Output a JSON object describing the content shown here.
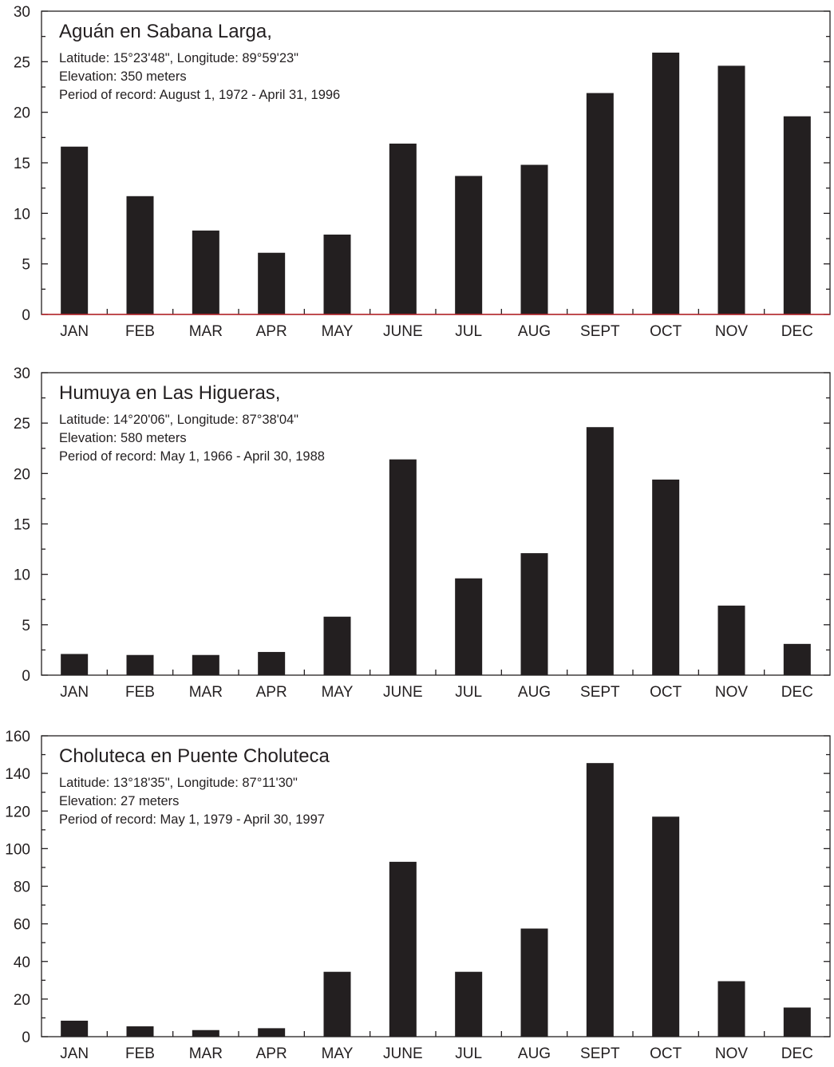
{
  "chart_data": [
    {
      "type": "bar",
      "title": "Aguán en Sabana Larga,",
      "info": [
        "Latitude: 15°23'48\", Longitude: 89°59'23\"",
        "Elevation: 350 meters",
        "Period of record: August 1, 1972 - April 31, 1996"
      ],
      "categories": [
        "JAN",
        "FEB",
        "MAR",
        "APR",
        "MAY",
        "JUNE",
        "JUL",
        "AUG",
        "SEPT",
        "OCT",
        "NOV",
        "DEC"
      ],
      "values": [
        16.6,
        11.7,
        8.3,
        6.1,
        7.9,
        16.9,
        13.7,
        14.8,
        21.9,
        25.9,
        24.6,
        19.6
      ],
      "ylim": [
        0,
        30
      ],
      "yticks": [
        "0",
        "5",
        "10",
        "15",
        "20",
        "25",
        "30"
      ],
      "baseline_color": "#c0272d"
    },
    {
      "type": "bar",
      "title": "Humuya en Las Higueras,",
      "info": [
        "Latitude: 14°20'06\", Longitude: 87°38'04\"",
        "Elevation: 580 meters",
        "Period of record: May 1, 1966 - April 30, 1988"
      ],
      "categories": [
        "JAN",
        "FEB",
        "MAR",
        "APR",
        "MAY",
        "JUNE",
        "JUL",
        "AUG",
        "SEPT",
        "OCT",
        "NOV",
        "DEC"
      ],
      "values": [
        2.1,
        2.0,
        2.0,
        2.3,
        5.8,
        21.4,
        9.6,
        12.1,
        24.6,
        19.4,
        6.9,
        3.1
      ],
      "ylim": [
        0,
        30
      ],
      "yticks": [
        "0",
        "5",
        "10",
        "15",
        "20",
        "25",
        "30"
      ]
    },
    {
      "type": "bar",
      "title": "Choluteca en Puente Choluteca",
      "info": [
        "Latitude: 13°18'35\", Longitude: 87°11'30\"",
        "Elevation: 27 meters",
        "Period of record: May 1, 1979 - April 30, 1997"
      ],
      "categories": [
        "JAN",
        "FEB",
        "MAR",
        "APR",
        "MAY",
        "JUNE",
        "JUL",
        "AUG",
        "SEPT",
        "OCT",
        "NOV",
        "DEC"
      ],
      "values": [
        8.5,
        5.5,
        3.5,
        4.5,
        34.5,
        93.0,
        34.5,
        57.5,
        145.5,
        117.0,
        29.5,
        15.5
      ],
      "ylim": [
        0,
        160
      ],
      "yticks": [
        "0",
        "20",
        "40",
        "60",
        "80",
        "100",
        "120",
        "140",
        "160"
      ]
    }
  ]
}
